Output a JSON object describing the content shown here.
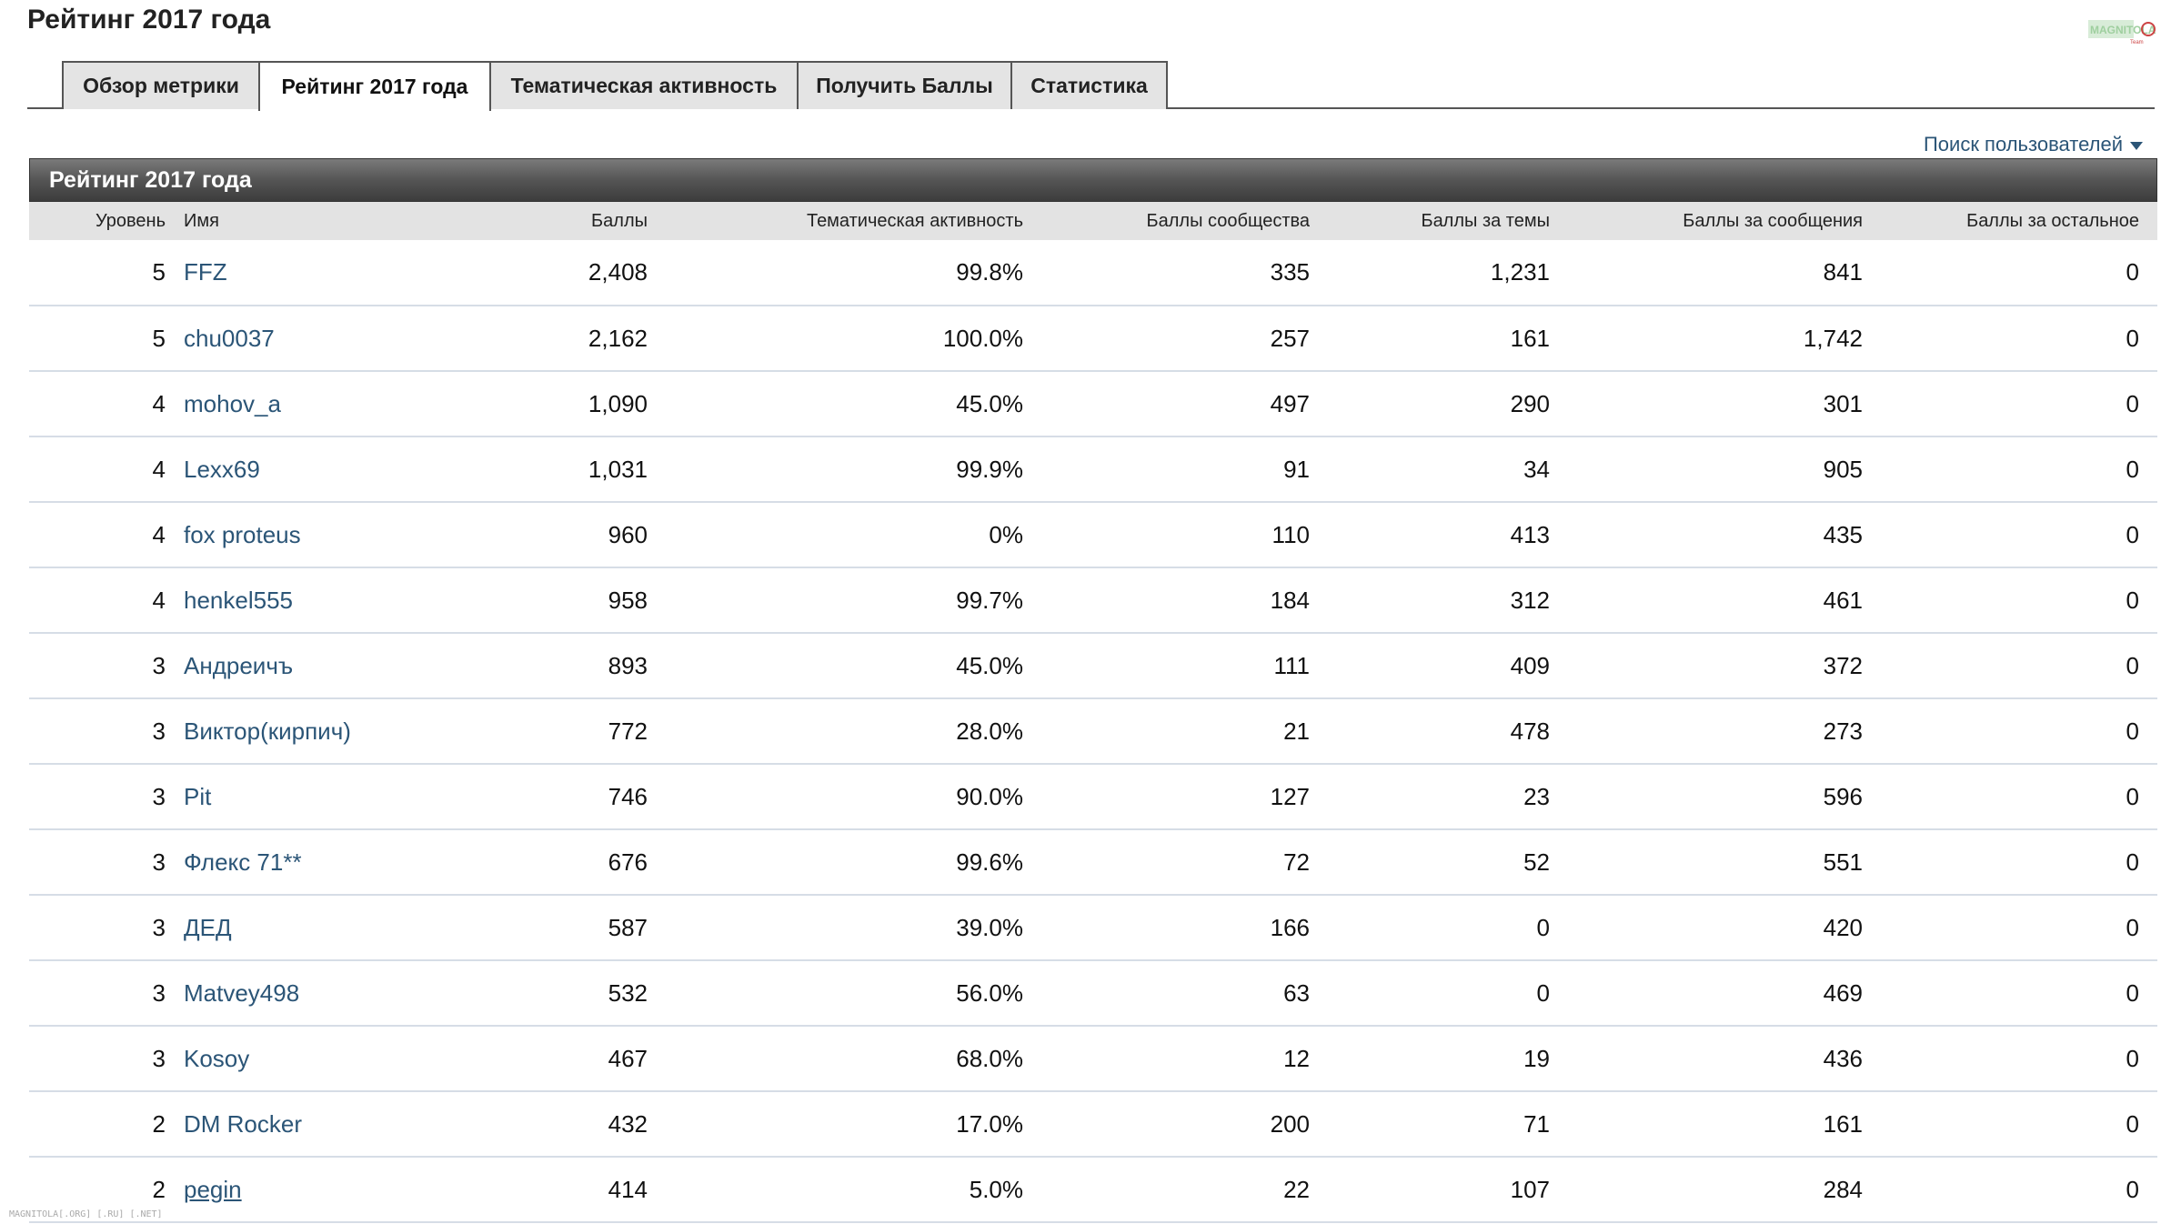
{
  "page": {
    "title": "Рейтинг 2017 года",
    "search_users_label": "Поиск пользователей",
    "logo_label": "MAGNITOLA"
  },
  "tabs": [
    {
      "label": "Обзор метрики",
      "active": false
    },
    {
      "label": "Рейтинг 2017 года",
      "active": true
    },
    {
      "label": "Тематическая активность",
      "active": false
    },
    {
      "label": "Получить Баллы",
      "active": false
    },
    {
      "label": "Статистика",
      "active": false
    }
  ],
  "panel": {
    "title": "Рейтинг 2017 года"
  },
  "table": {
    "columns": [
      "Уровень",
      "Имя",
      "Баллы",
      "Тематическая активность",
      "Баллы сообщества",
      "Баллы за темы",
      "Баллы за сообщения",
      "Баллы за остальное"
    ],
    "rows": [
      {
        "level": "5",
        "name": "FFZ",
        "points": "2,408",
        "activity": "99.8%",
        "community": "335",
        "topics": "1,231",
        "posts": "841",
        "other": "0"
      },
      {
        "level": "5",
        "name": "chu0037",
        "points": "2,162",
        "activity": "100.0%",
        "community": "257",
        "topics": "161",
        "posts": "1,742",
        "other": "0"
      },
      {
        "level": "4",
        "name": "mohov_a",
        "points": "1,090",
        "activity": "45.0%",
        "community": "497",
        "topics": "290",
        "posts": "301",
        "other": "0"
      },
      {
        "level": "4",
        "name": "Lexx69",
        "points": "1,031",
        "activity": "99.9%",
        "community": "91",
        "topics": "34",
        "posts": "905",
        "other": "0"
      },
      {
        "level": "4",
        "name": "fox proteus",
        "points": "960",
        "activity": "0%",
        "community": "110",
        "topics": "413",
        "posts": "435",
        "other": "0"
      },
      {
        "level": "4",
        "name": "henkel555",
        "points": "958",
        "activity": "99.7%",
        "community": "184",
        "topics": "312",
        "posts": "461",
        "other": "0"
      },
      {
        "level": "3",
        "name": "Андреичъ",
        "points": "893",
        "activity": "45.0%",
        "community": "111",
        "topics": "409",
        "posts": "372",
        "other": "0"
      },
      {
        "level": "3",
        "name": "Виктор(кирпич)",
        "points": "772",
        "activity": "28.0%",
        "community": "21",
        "topics": "478",
        "posts": "273",
        "other": "0"
      },
      {
        "level": "3",
        "name": "Pit",
        "points": "746",
        "activity": "90.0%",
        "community": "127",
        "topics": "23",
        "posts": "596",
        "other": "0"
      },
      {
        "level": "3",
        "name": "Флекс 71**",
        "points": "676",
        "activity": "99.6%",
        "community": "72",
        "topics": "52",
        "posts": "551",
        "other": "0"
      },
      {
        "level": "3",
        "name": "ДЕД",
        "points": "587",
        "activity": "39.0%",
        "community": "166",
        "topics": "0",
        "posts": "420",
        "other": "0"
      },
      {
        "level": "3",
        "name": "Matvey498",
        "points": "532",
        "activity": "56.0%",
        "community": "63",
        "topics": "0",
        "posts": "469",
        "other": "0"
      },
      {
        "level": "3",
        "name": "Kosoy",
        "points": "467",
        "activity": "68.0%",
        "community": "12",
        "topics": "19",
        "posts": "436",
        "other": "0"
      },
      {
        "level": "2",
        "name": "DM Rocker",
        "points": "432",
        "activity": "17.0%",
        "community": "200",
        "topics": "71",
        "posts": "161",
        "other": "0"
      },
      {
        "level": "2",
        "name": "pegin",
        "points": "414",
        "activity": "5.0%",
        "community": "22",
        "topics": "107",
        "posts": "284",
        "other": "0",
        "underlined": true
      }
    ]
  },
  "footer": {
    "watermark": "MAGNITOLA[.ORG] [.RU] [.NET]"
  }
}
